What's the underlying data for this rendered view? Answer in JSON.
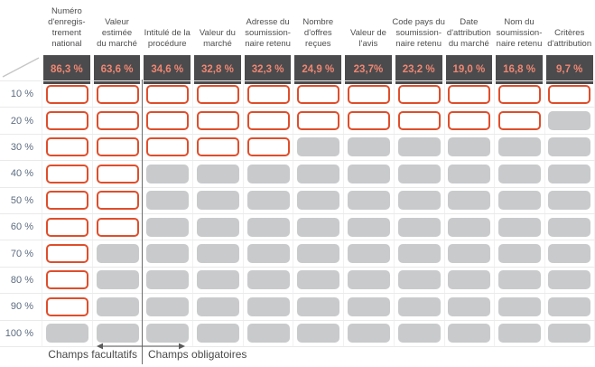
{
  "chart_data": {
    "type": "heatmap",
    "description_rows_axis": [
      "10 %",
      "20 %",
      "30 %",
      "40 %",
      "50 %",
      "60 %",
      "70 %",
      "80 %",
      "90 %",
      "100 %"
    ],
    "columns": [
      {
        "label": "Numéro\nd'enregis-\ntrement\nnational",
        "percentage_label": "86,3 %",
        "value": 86.3,
        "filled_rows": 9,
        "group": "facultatif"
      },
      {
        "label": "Valeur\nestimée\ndu marché",
        "percentage_label": "63,6 %",
        "value": 63.6,
        "filled_rows": 6,
        "group": "facultatif"
      },
      {
        "label": "Intitulé de la\nprocédure",
        "percentage_label": "34,6 %",
        "value": 34.6,
        "filled_rows": 3,
        "group": "obligatoire"
      },
      {
        "label": "Valeur du\nmarché",
        "percentage_label": "32,8 %",
        "value": 32.8,
        "filled_rows": 3,
        "group": "obligatoire"
      },
      {
        "label": "Adresse du\nsoumission-\nnaire retenu",
        "percentage_label": "32,3 %",
        "value": 32.3,
        "filled_rows": 3,
        "group": "obligatoire"
      },
      {
        "label": "Nombre\nd'offres\nreçues",
        "percentage_label": "24,9 %",
        "value": 24.9,
        "filled_rows": 2,
        "group": "obligatoire"
      },
      {
        "label": "Valeur de\nl'avis",
        "percentage_label": "23,7%",
        "value": 23.7,
        "filled_rows": 2,
        "group": "obligatoire"
      },
      {
        "label": "Code pays du\nsoumission-\nnaire retenu",
        "percentage_label": "23,2 %",
        "value": 23.2,
        "filled_rows": 2,
        "group": "obligatoire"
      },
      {
        "label": "Date\nd'attribution\ndu marché",
        "percentage_label": "19,0 %",
        "value": 19.0,
        "filled_rows": 2,
        "group": "obligatoire"
      },
      {
        "label": "Nom du\nsoumission-\nnaire retenu",
        "percentage_label": "16,8 %",
        "value": 16.8,
        "filled_rows": 2,
        "group": "obligatoire"
      },
      {
        "label": "Critères\nd'attribution",
        "percentage_label": "9,7 %",
        "value": 9.7,
        "filled_rows": 1,
        "group": "obligatoire"
      }
    ],
    "legend": {
      "left_label": "Champs facultatifs",
      "right_label": "Champs obligatoires"
    },
    "layout": {
      "legend_position": "bottom",
      "divider_between_columns": [
        2,
        3
      ],
      "grid": "light-gray row and column separators"
    },
    "colors": {
      "filled_cell_border": "#df4e2b",
      "empty_cell_fill": "#c9cacc",
      "percentage_row_background": "#4b4b4d",
      "percentage_text": "#ee8672",
      "row_label_text": "#5d6c80",
      "header_text": "#4e4e50"
    }
  }
}
